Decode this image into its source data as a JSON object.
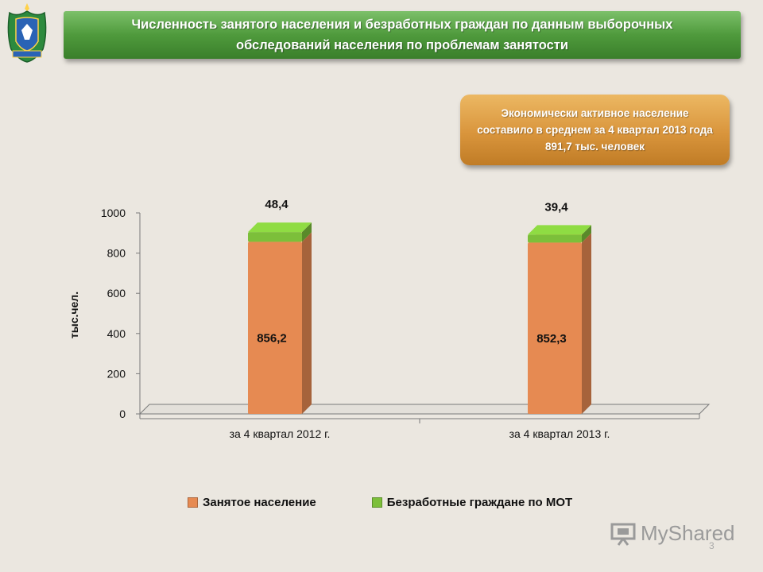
{
  "header": {
    "title": "Численность занятого населения и безработных граждан по данным выборочных обследований населения по проблемам занятости",
    "emblem_icon": "coat-of-arms-icon"
  },
  "info_box": {
    "text": "Экономически активное население составило в среднем за 4 квартал 2013 года 891,7 тыс. человек"
  },
  "chart_data": {
    "type": "bar",
    "stacked": true,
    "style": "3d-cylinder",
    "categories": [
      "за 4 квартал 2012 г.",
      "за 4 квартал 2013 г."
    ],
    "series": [
      {
        "name": "Занятое население",
        "values": [
          856.2,
          852.3
        ],
        "labels": [
          "856,2",
          "852,3"
        ],
        "color": "#e68a52"
      },
      {
        "name": "Безработные граждане по МОТ",
        "values": [
          48.4,
          39.4
        ],
        "labels": [
          "48,4",
          "39,4"
        ],
        "color": "#7cbf3a"
      }
    ],
    "ylabel": "тыс.чел.",
    "ylim": [
      0,
      1000
    ],
    "yticks": [
      0,
      200,
      400,
      600,
      800,
      1000
    ],
    "grid": false,
    "legend_position": "bottom"
  },
  "watermark": {
    "text": "MyShared",
    "icon": "projector-screen-icon"
  },
  "page_number": "3"
}
